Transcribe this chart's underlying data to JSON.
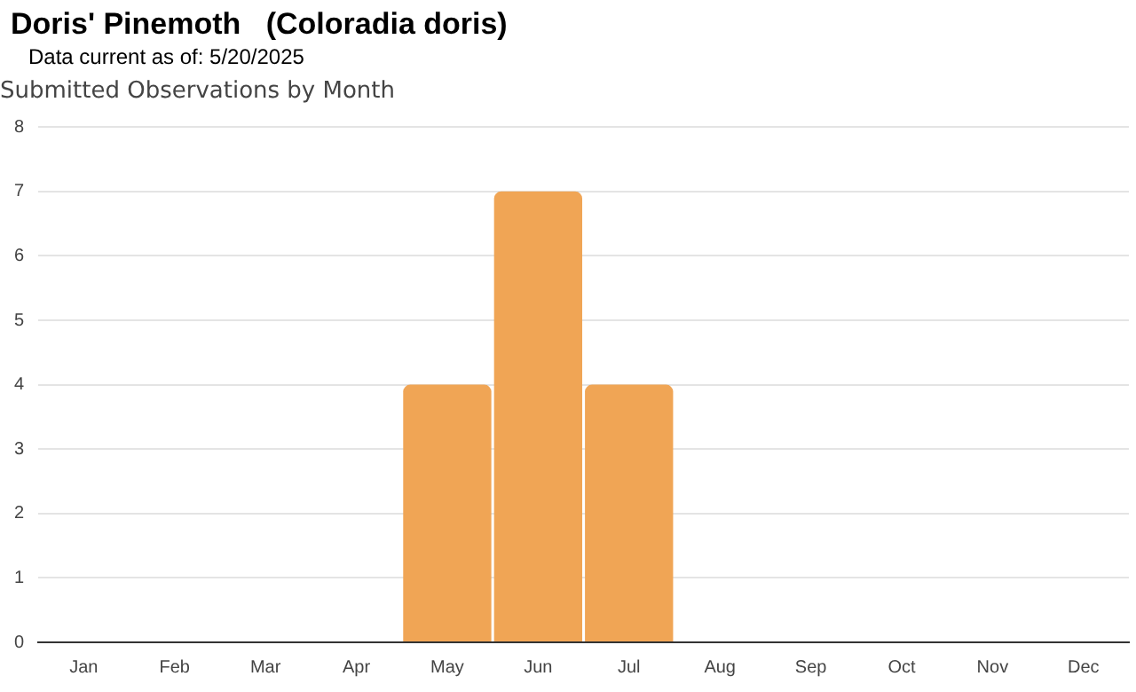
{
  "chart_data": {
    "type": "bar",
    "title": "Doris' Pinemoth   (Coloradia doris)",
    "subtitle": "Data current as of: 5/20/2025",
    "annotations": [
      "Submitted Observations by Month"
    ],
    "categories": [
      "Jan",
      "Feb",
      "Mar",
      "Apr",
      "May",
      "Jun",
      "Jul",
      "Aug",
      "Sep",
      "Oct",
      "Nov",
      "Dec"
    ],
    "values": [
      0,
      0,
      0,
      0,
      4,
      7,
      4,
      0,
      0,
      0,
      0,
      0
    ],
    "color": "#f0a555",
    "ylim": [
      0,
      8
    ],
    "yticks": [
      0,
      1,
      2,
      3,
      4,
      5,
      6,
      7,
      8
    ],
    "grid": "y",
    "legend": false
  }
}
